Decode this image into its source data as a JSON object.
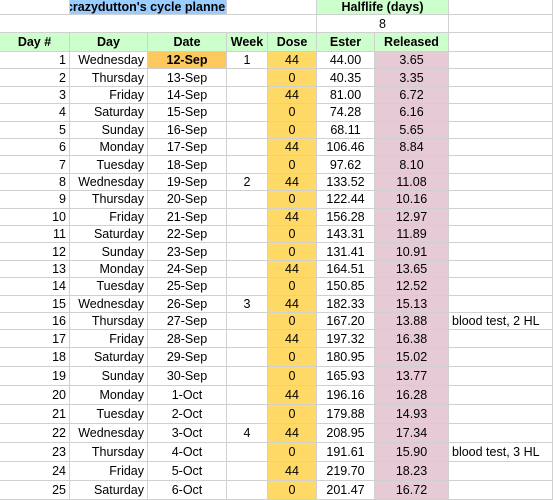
{
  "title": "crazydutton's cycle planner",
  "halflife_label": "Halflife (days)",
  "halflife_value": 8,
  "table": {
    "header": [
      "Day #",
      "Day",
      "Date",
      "Week",
      "Dose",
      "Ester",
      "Released"
    ],
    "rows": [
      [
        1,
        "Wednesday",
        "12-Sep",
        1,
        44,
        "44.00",
        "3.65",
        null
      ],
      [
        2,
        "Thursday",
        "13-Sep",
        null,
        0,
        "40.35",
        "3.35",
        null
      ],
      [
        3,
        "Friday",
        "14-Sep",
        null,
        44,
        "81.00",
        "6.72",
        null
      ],
      [
        4,
        "Saturday",
        "15-Sep",
        null,
        0,
        "74.28",
        "6.16",
        null
      ],
      [
        5,
        "Sunday",
        "16-Sep",
        null,
        0,
        "68.11",
        "5.65",
        null
      ],
      [
        6,
        "Monday",
        "17-Sep",
        null,
        44,
        "106.46",
        "8.84",
        null
      ],
      [
        7,
        "Tuesday",
        "18-Sep",
        null,
        0,
        "97.62",
        "8.10",
        null
      ],
      [
        8,
        "Wednesday",
        "19-Sep",
        2,
        44,
        "133.52",
        "11.08",
        null
      ],
      [
        9,
        "Thursday",
        "20-Sep",
        null,
        0,
        "122.44",
        "10.16",
        null
      ],
      [
        10,
        "Friday",
        "21-Sep",
        null,
        44,
        "156.28",
        "12.97",
        null
      ],
      [
        11,
        "Saturday",
        "22-Sep",
        null,
        0,
        "143.31",
        "11.89",
        null
      ],
      [
        12,
        "Sunday",
        "23-Sep",
        null,
        0,
        "131.41",
        "10.91",
        null
      ],
      [
        13,
        "Monday",
        "24-Sep",
        null,
        44,
        "164.51",
        "13.65",
        null
      ],
      [
        14,
        "Tuesday",
        "25-Sep",
        null,
        0,
        "150.85",
        "12.52",
        null
      ],
      [
        15,
        "Wednesday",
        "26-Sep",
        3,
        44,
        "182.33",
        "15.13",
        null
      ],
      [
        16,
        "Thursday",
        "27-Sep",
        null,
        0,
        "167.20",
        "13.88",
        "blood test, 2 HL"
      ],
      [
        17,
        "Friday",
        "28-Sep",
        null,
        44,
        "197.32",
        "16.38",
        null
      ],
      [
        18,
        "Saturday",
        "29-Sep",
        null,
        0,
        "180.95",
        "15.02",
        null
      ],
      [
        19,
        "Sunday",
        "30-Sep",
        null,
        0,
        "165.93",
        "13.77",
        null
      ],
      [
        20,
        "Monday",
        "1-Oct",
        null,
        44,
        "196.16",
        "16.28",
        null
      ],
      [
        21,
        "Tuesday",
        "2-Oct",
        null,
        0,
        "179.88",
        "14.93",
        null
      ],
      [
        22,
        "Wednesday",
        "3-Oct",
        4,
        44,
        "208.95",
        "17.34",
        null
      ],
      [
        23,
        "Thursday",
        "4-Oct",
        null,
        0,
        "191.61",
        "15.90",
        "blood test, 3 HL"
      ],
      [
        24,
        "Friday",
        "5-Oct",
        null,
        44,
        "219.70",
        "18.23",
        null
      ],
      [
        25,
        "Saturday",
        "6-Oct",
        null,
        0,
        "201.47",
        "16.72",
        null
      ]
    ]
  }
}
